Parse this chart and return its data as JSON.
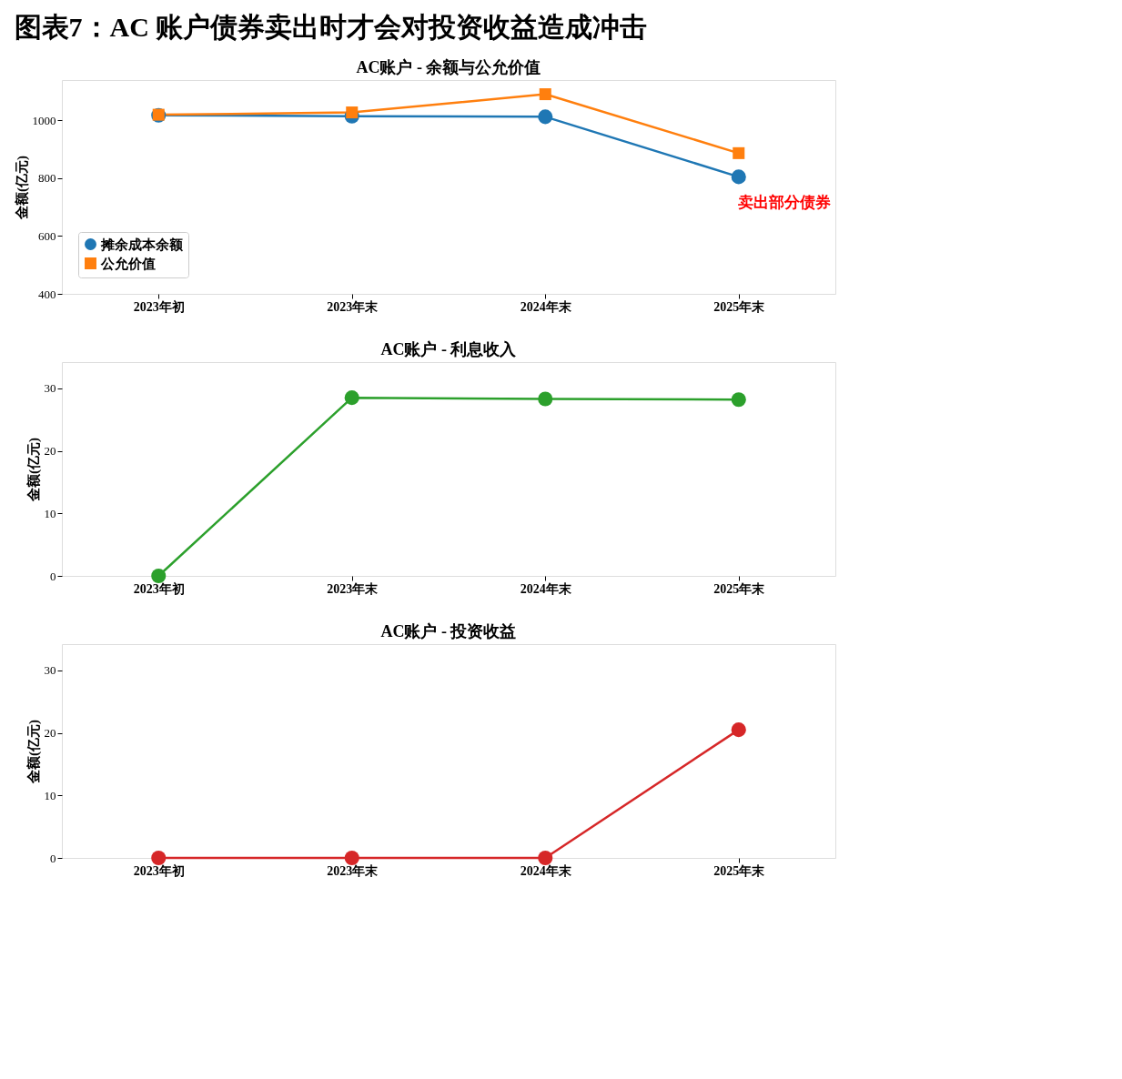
{
  "chart_data": [
    {
      "type": "other",
      "title": "图表7：AC 账户债券卖出时才会对投资收益造成冲击"
    },
    {
      "type": "line",
      "title": "AC账户 - 余额与公允价值",
      "ylabel": "金额(亿元)",
      "categories": [
        "2023年初",
        "2023年末",
        "2024年末",
        "2025年末"
      ],
      "series": [
        {
          "name": "摊余成本余额",
          "color": "#1f77b4",
          "marker": "circle",
          "values": [
            1018,
            1015,
            1013,
            805
          ]
        },
        {
          "name": "公允价值",
          "color": "#ff7f0e",
          "marker": "square",
          "values": [
            1020,
            1028,
            1091,
            887
          ]
        }
      ],
      "ylim": [
        400,
        1140
      ],
      "yticks": [
        400,
        600,
        800,
        1000
      ],
      "grid": false,
      "legend": "bottom left",
      "annotations": [
        "卖出部分债券"
      ]
    },
    {
      "type": "line",
      "title": "AC账户 - 利息收入",
      "ylabel": "金额(亿元)",
      "categories": [
        "2023年初",
        "2023年末",
        "2024年末",
        "2025年末"
      ],
      "series": [
        {
          "color": "#2ca02c",
          "marker": "circle",
          "values": [
            0,
            28.5,
            28.3,
            28.2
          ]
        }
      ],
      "ylim": [
        0,
        34.2
      ],
      "yticks": [
        0,
        10,
        20,
        30
      ],
      "grid": false,
      "legend": false
    },
    {
      "type": "line",
      "title": "AC账户 - 投资收益",
      "ylabel": "金额(亿元)",
      "categories": [
        "2023年初",
        "2023年末",
        "2024年末",
        "2025年末"
      ],
      "series": [
        {
          "color": "#d62728",
          "marker": "circle",
          "values": [
            0,
            0,
            0,
            20.5
          ]
        }
      ],
      "ylim": [
        0,
        34.2
      ],
      "yticks": [
        0,
        10,
        20,
        30
      ],
      "grid": false,
      "legend": false
    }
  ]
}
